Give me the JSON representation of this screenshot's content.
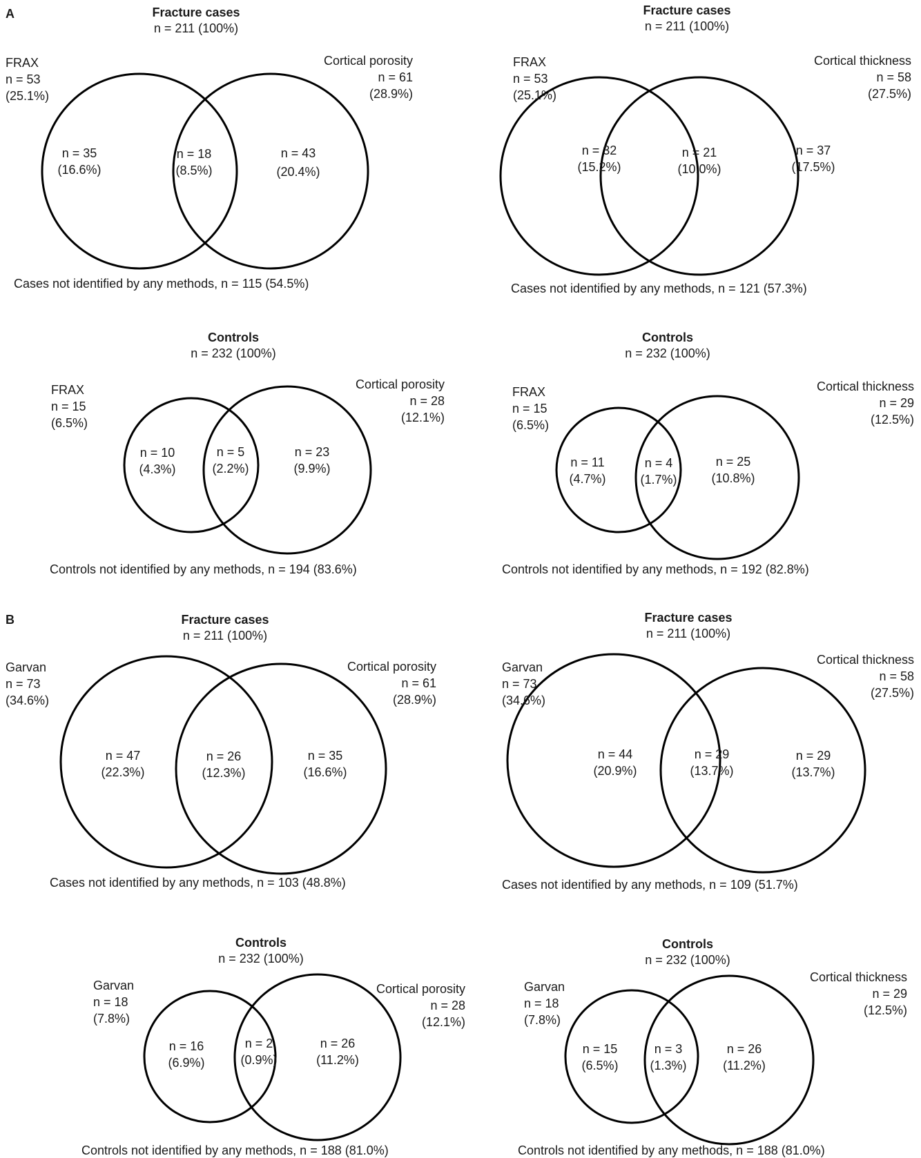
{
  "panel_labels": [
    "A",
    "B"
  ],
  "diagrams": [
    {
      "title": "Fracture cases",
      "total": "n = 211 (100%)",
      "left_name": "FRAX",
      "left_n": "n = 53",
      "left_pct": "(25.1%)",
      "right_name": "Cortical porosity",
      "right_n": "n = 61",
      "right_pct": "(28.9%)",
      "only_left": [
        "n = 35",
        "(16.6%)"
      ],
      "both": [
        "n = 18",
        "(8.5%)"
      ],
      "only_right": [
        "n = 43",
        "(20.4%)"
      ],
      "footer": "Cases not identified by any methods, n = 115 (54.5%)"
    },
    {
      "title": "Fracture cases",
      "total": "n = 211 (100%)",
      "left_name": "FRAX",
      "left_n": "n = 53",
      "left_pct": "(25.1%)",
      "right_name": "Cortical thickness",
      "right_n": "n = 58",
      "right_pct": "(27.5%)",
      "only_left": [
        "n = 32",
        "(15.2%)"
      ],
      "both": [
        "n = 21",
        "(10.0%)"
      ],
      "only_right": [
        "n = 37",
        "(17.5%)"
      ],
      "footer": "Cases not identified by any methods, n = 121 (57.3%)"
    },
    {
      "title": "Controls",
      "total": "n = 232 (100%)",
      "left_name": "FRAX",
      "left_n": "n = 15",
      "left_pct": "(6.5%)",
      "right_name": "Cortical porosity",
      "right_n": "n = 28",
      "right_pct": "(12.1%)",
      "only_left": [
        "n = 10",
        "(4.3%)"
      ],
      "both": [
        "n = 5",
        "(2.2%)"
      ],
      "only_right": [
        "n = 23",
        "(9.9%)"
      ],
      "footer": "Controls not identified by any methods, n = 194 (83.6%)"
    },
    {
      "title": "Controls",
      "total": "n = 232 (100%)",
      "left_name": "FRAX",
      "left_n": "n = 15",
      "left_pct": "(6.5%)",
      "right_name": "Cortical thickness",
      "right_n": "n = 29",
      "right_pct": "(12.5%)",
      "only_left": [
        "n = 11",
        "(4.7%)"
      ],
      "both": [
        "n = 4",
        "(1.7%)"
      ],
      "only_right": [
        "n = 25",
        "(10.8%)"
      ],
      "footer": "Controls not identified by any methods, n = 192 (82.8%)"
    },
    {
      "title": "Fracture cases",
      "total": "n = 211 (100%)",
      "left_name": "Garvan",
      "left_n": "n = 73",
      "left_pct": "(34.6%)",
      "right_name": "Cortical porosity",
      "right_n": "n = 61",
      "right_pct": "(28.9%)",
      "only_left": [
        "n = 47",
        "(22.3%)"
      ],
      "both": [
        "n = 26",
        "(12.3%)"
      ],
      "only_right": [
        "n = 35",
        "(16.6%)"
      ],
      "footer": "Cases not identified by any methods, n = 103 (48.8%)"
    },
    {
      "title": "Fracture cases",
      "total": "n = 211 (100%)",
      "left_name": "Garvan",
      "left_n": "n = 73",
      "left_pct": "(34.6%)",
      "right_name": "Cortical thickness",
      "right_n": "n = 58",
      "right_pct": "(27.5%)",
      "only_left": [
        "n = 44",
        "(20.9%)"
      ],
      "both": [
        "n = 29",
        "(13.7%)"
      ],
      "only_right": [
        "n = 29",
        "(13.7%)"
      ],
      "footer": "Cases not identified by any methods, n = 109 (51.7%)"
    },
    {
      "title": "Controls",
      "total": "n = 232 (100%)",
      "left_name": "Garvan",
      "left_n": "n = 18",
      "left_pct": "(7.8%)",
      "right_name": "Cortical porosity",
      "right_n": "n = 28",
      "right_pct": "(12.1%)",
      "only_left": [
        "n = 16",
        "(6.9%)"
      ],
      "both": [
        "n = 2",
        "(0.9%)"
      ],
      "only_right": [
        "n = 26",
        "(11.2%)"
      ],
      "footer": "Controls not identified by any methods, n = 188 (81.0%)"
    },
    {
      "title": "Controls",
      "total": "n = 232 (100%)",
      "left_name": "Garvan",
      "left_n": "n = 18",
      "left_pct": "(7.8%)",
      "right_name": "Cortical thickness",
      "right_n": "n = 29",
      "right_pct": "(12.5%)",
      "only_left": [
        "n = 15",
        "(6.5%)"
      ],
      "both": [
        "n = 3",
        "(1.3%)"
      ],
      "only_right": [
        "n = 26",
        "(11.2%)"
      ],
      "footer": "Controls not identified by any methods, n = 188 (81.0%)"
    }
  ]
}
